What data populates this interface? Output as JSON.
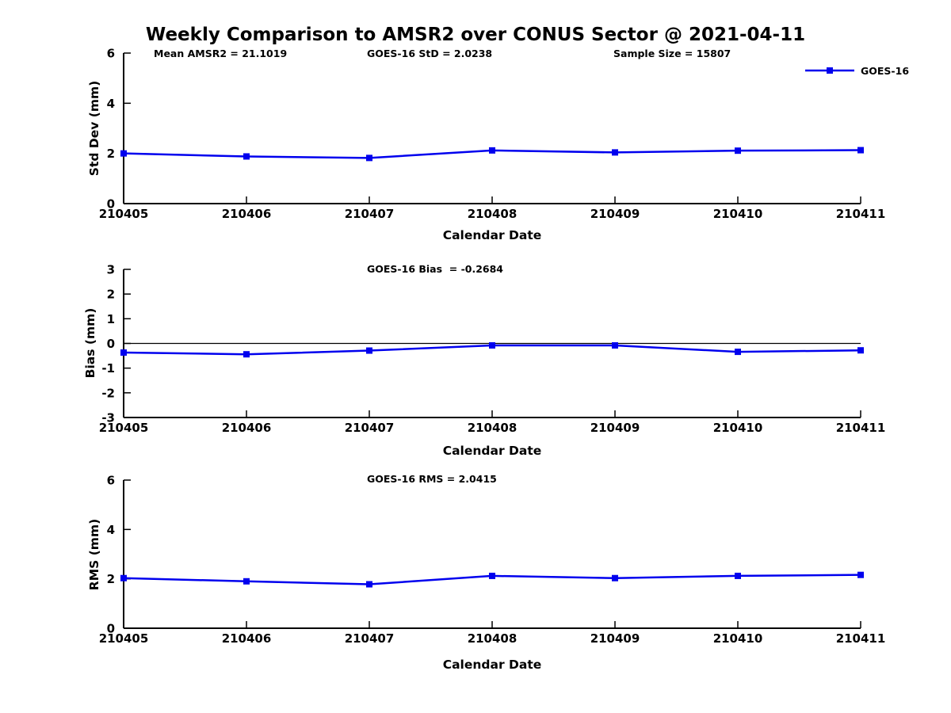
{
  "title": "Weekly Comparison to AMSR2 over CONUS Sector @ 2021-04-11",
  "legend": {
    "label": "GOES-16",
    "position": "top-right"
  },
  "colors": {
    "series": "#0000ee",
    "axis": "#000000",
    "text": "#000000",
    "background": "#ffffff"
  },
  "chart_data": [
    {
      "type": "line",
      "ylabel": "Std Dev (mm)",
      "xlabel": "Calendar Date",
      "ylim": [
        0,
        6
      ],
      "yticks": [
        0,
        2,
        4,
        6
      ],
      "categories": [
        "210405",
        "210406",
        "210407",
        "210408",
        "210409",
        "210410",
        "210411"
      ],
      "series": [
        {
          "name": "GOES-16",
          "marker": "square",
          "values": [
            2.0,
            1.88,
            1.82,
            2.12,
            2.04,
            2.11,
            2.13
          ]
        }
      ],
      "annotations": [
        "Mean AMSR2 = 21.1019",
        "GOES-16 StD = 2.0238",
        "Sample Size = 15807"
      ],
      "zero_line": false,
      "grid": false,
      "legend_visible": true
    },
    {
      "type": "line",
      "ylabel": "Bias (mm)",
      "xlabel": "Calendar Date",
      "ylim": [
        -3,
        3
      ],
      "yticks": [
        -3,
        -2,
        -1,
        0,
        1,
        2,
        3
      ],
      "categories": [
        "210405",
        "210406",
        "210407",
        "210408",
        "210409",
        "210410",
        "210411"
      ],
      "series": [
        {
          "name": "GOES-16",
          "marker": "square",
          "values": [
            -0.37,
            -0.44,
            -0.29,
            -0.08,
            -0.08,
            -0.34,
            -0.28
          ]
        }
      ],
      "annotations": [
        "GOES-16 Bias  = -0.2684"
      ],
      "zero_line": true,
      "grid": false,
      "legend_visible": false
    },
    {
      "type": "line",
      "ylabel": "RMS (mm)",
      "xlabel": "Calendar Date",
      "ylim": [
        0,
        6
      ],
      "yticks": [
        0,
        2,
        4,
        6
      ],
      "categories": [
        "210405",
        "210406",
        "210407",
        "210408",
        "210409",
        "210410",
        "210411"
      ],
      "series": [
        {
          "name": "GOES-16",
          "marker": "square",
          "values": [
            2.03,
            1.9,
            1.78,
            2.12,
            2.03,
            2.12,
            2.16
          ]
        }
      ],
      "annotations": [
        "GOES-16 RMS = 2.0415"
      ],
      "zero_line": false,
      "grid": false,
      "legend_visible": false
    }
  ]
}
